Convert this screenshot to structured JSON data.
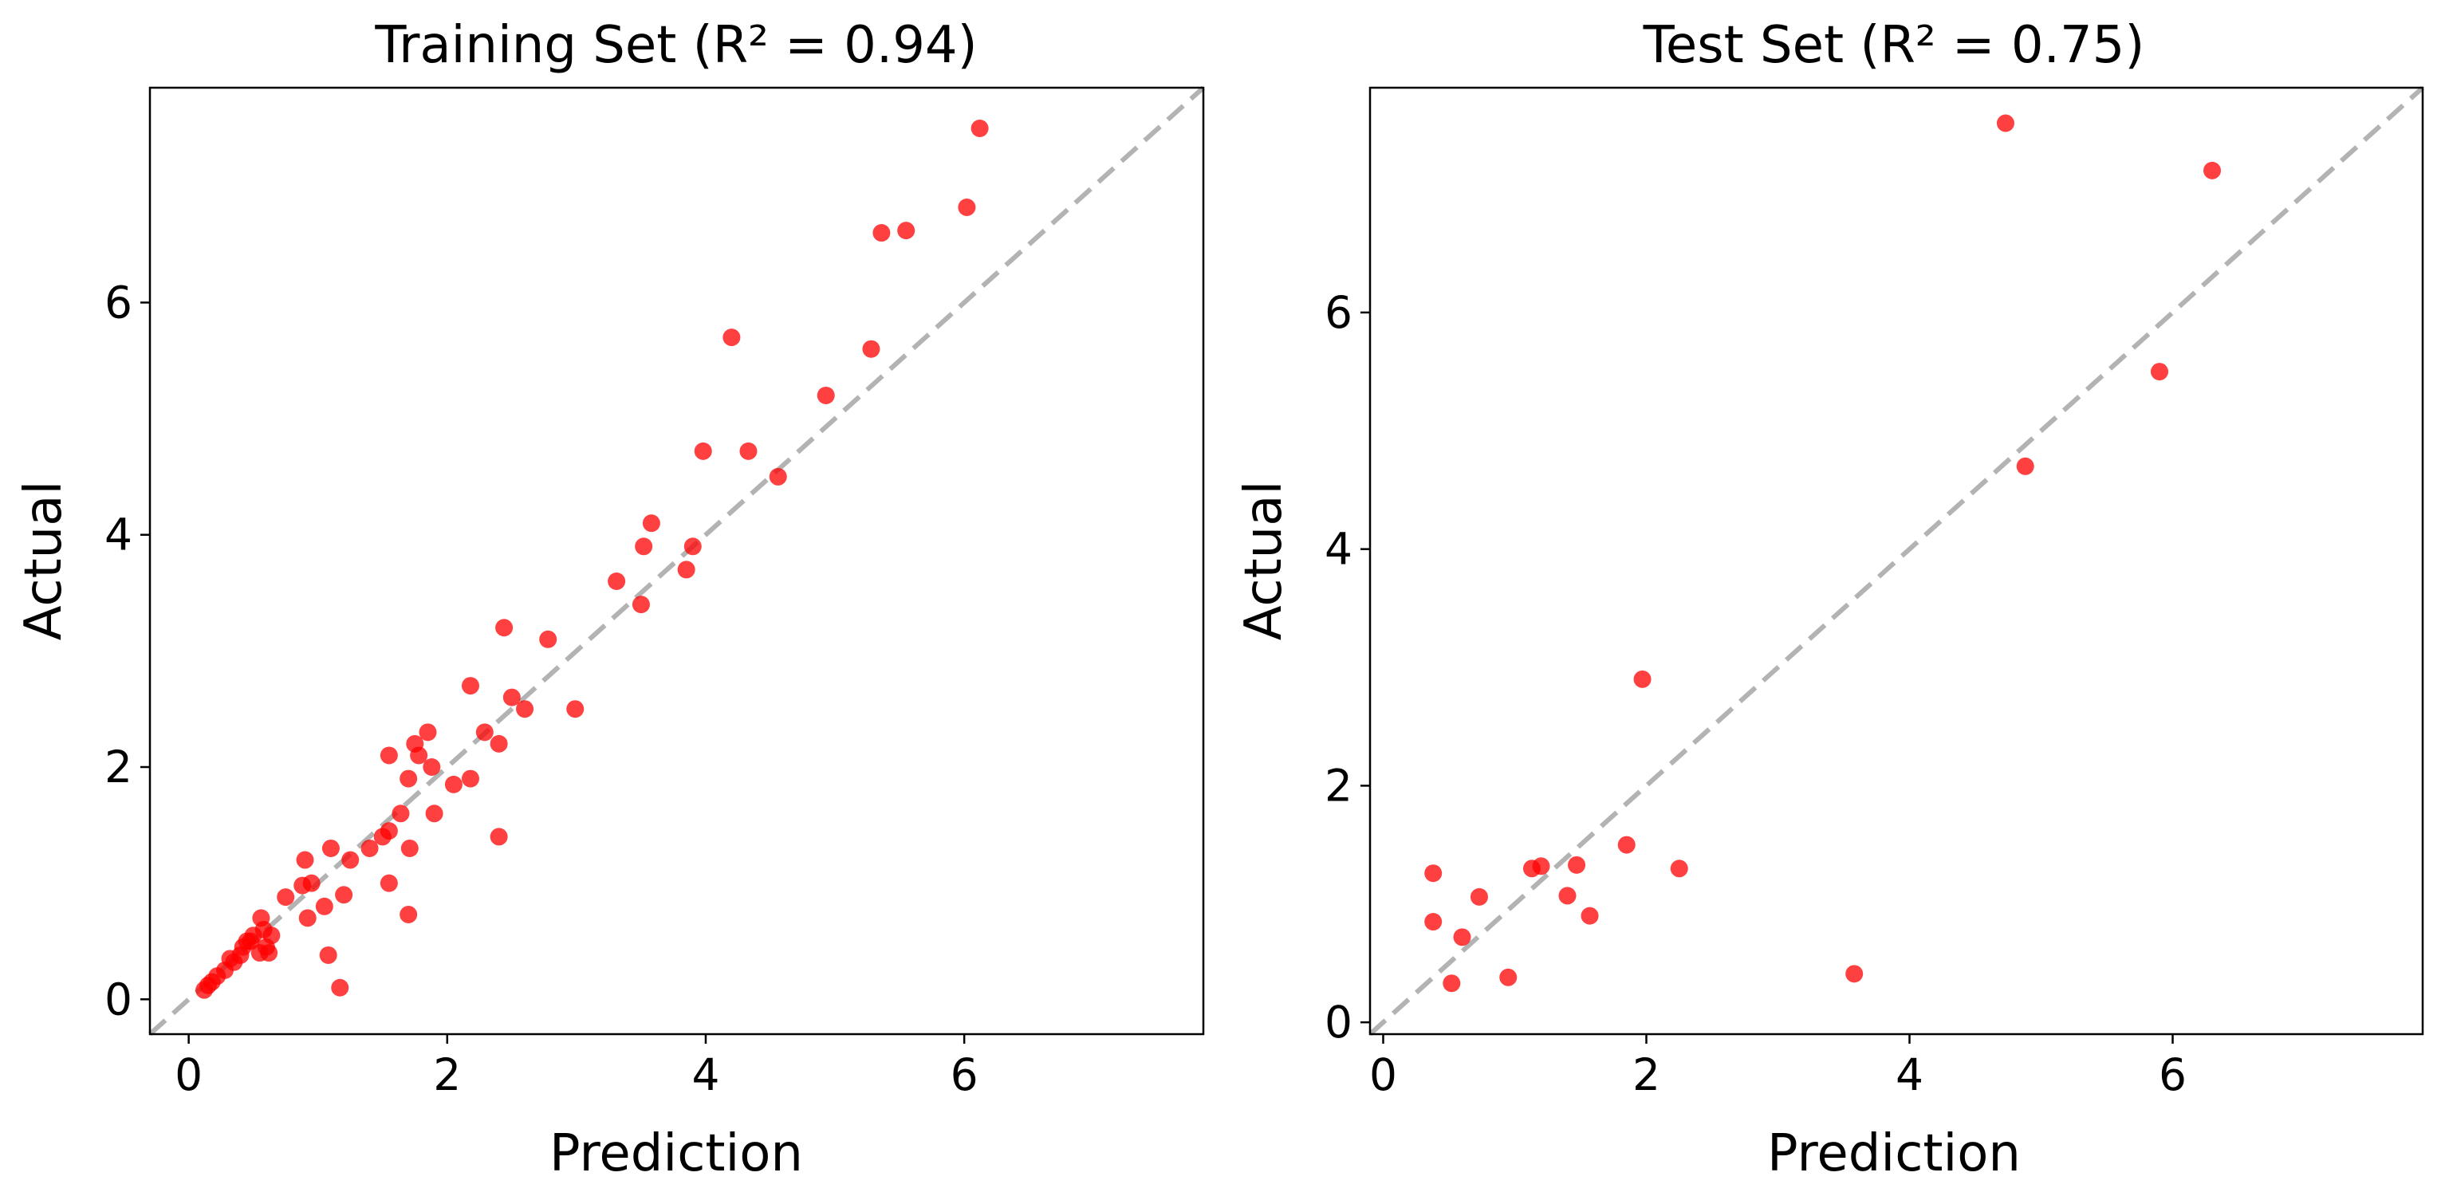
{
  "chart_data": [
    {
      "type": "scatter",
      "title": "Training Set (R² = 0.94)",
      "xlabel": "Prediction",
      "ylabel": "Actual",
      "xlim": [
        -0.3,
        7.85
      ],
      "ylim": [
        -0.3,
        7.85
      ],
      "xticks": [
        0,
        2,
        4,
        6
      ],
      "yticks": [
        0,
        2,
        4,
        6
      ],
      "xtick_labels": [
        "0",
        "2",
        "4",
        "6"
      ],
      "ytick_labels": [
        "0",
        "2",
        "4",
        "6"
      ],
      "grid": false,
      "reference_line": "y = x (dashed)",
      "marker_color": "#ff0000",
      "line_color": "#b3b3b3",
      "x": [
        6.12,
        6.02,
        5.55,
        5.36,
        5.28,
        4.93,
        4.56,
        4.33,
        4.2,
        3.98,
        3.9,
        3.85,
        3.58,
        3.5,
        3.52,
        3.31,
        2.99,
        2.78,
        2.6,
        2.5,
        2.44,
        2.4,
        2.4,
        2.29,
        2.18,
        2.18,
        2.05,
        1.9,
        1.88,
        1.85,
        1.78,
        1.75,
        1.71,
        1.7,
        1.7,
        1.64,
        1.55,
        1.55,
        1.55,
        1.5,
        1.4,
        1.25,
        1.2,
        1.17,
        1.1,
        1.08,
        1.05,
        0.95,
        0.92,
        0.9,
        0.88,
        0.75,
        0.64,
        0.62,
        0.6,
        0.58,
        0.56,
        0.55,
        0.5,
        0.48,
        0.45,
        0.42,
        0.4,
        0.35,
        0.32,
        0.28,
        0.22,
        0.18,
        0.15,
        0.12
      ],
      "y": [
        7.5,
        6.82,
        6.62,
        6.6,
        5.6,
        5.2,
        4.5,
        4.72,
        5.7,
        4.72,
        3.9,
        3.7,
        4.1,
        3.4,
        3.9,
        3.6,
        2.5,
        3.1,
        2.5,
        2.6,
        3.2,
        2.2,
        1.4,
        2.3,
        2.7,
        1.9,
        1.85,
        1.6,
        2.0,
        2.3,
        2.1,
        2.2,
        1.3,
        0.73,
        1.9,
        1.6,
        1.45,
        1.0,
        2.1,
        1.4,
        1.3,
        1.2,
        0.9,
        0.1,
        1.3,
        0.38,
        0.8,
        1.0,
        0.7,
        1.2,
        0.98,
        0.88,
        0.55,
        0.4,
        0.45,
        0.6,
        0.7,
        0.4,
        0.55,
        0.5,
        0.5,
        0.45,
        0.38,
        0.32,
        0.35,
        0.25,
        0.2,
        0.15,
        0.12,
        0.08
      ]
    },
    {
      "type": "scatter",
      "title": "Test Set (R² = 0.75)",
      "xlabel": "Prediction",
      "ylabel": "Actual",
      "xlim": [
        -0.1,
        7.9
      ],
      "ylim": [
        -0.1,
        7.9
      ],
      "xticks": [
        0,
        2,
        4,
        6
      ],
      "yticks": [
        0,
        2,
        4,
        6
      ],
      "xtick_labels": [
        "0",
        "2",
        "4",
        "6"
      ],
      "ytick_labels": [
        "0",
        "2",
        "4",
        "6"
      ],
      "grid": false,
      "reference_line": "y = x (dashed)",
      "marker_color": "#ff0000",
      "line_color": "#b3b3b3",
      "x": [
        4.73,
        6.3,
        5.9,
        4.88,
        1.97,
        0.38,
        0.38,
        0.6,
        0.52,
        0.73,
        0.95,
        1.13,
        1.2,
        1.4,
        1.47,
        1.57,
        1.85,
        2.25,
        3.58
      ],
      "y": [
        7.6,
        7.2,
        5.5,
        4.7,
        2.9,
        1.26,
        0.85,
        0.72,
        0.33,
        1.06,
        0.38,
        1.3,
        1.32,
        1.07,
        1.33,
        0.9,
        1.5,
        1.3,
        0.41
      ]
    }
  ]
}
